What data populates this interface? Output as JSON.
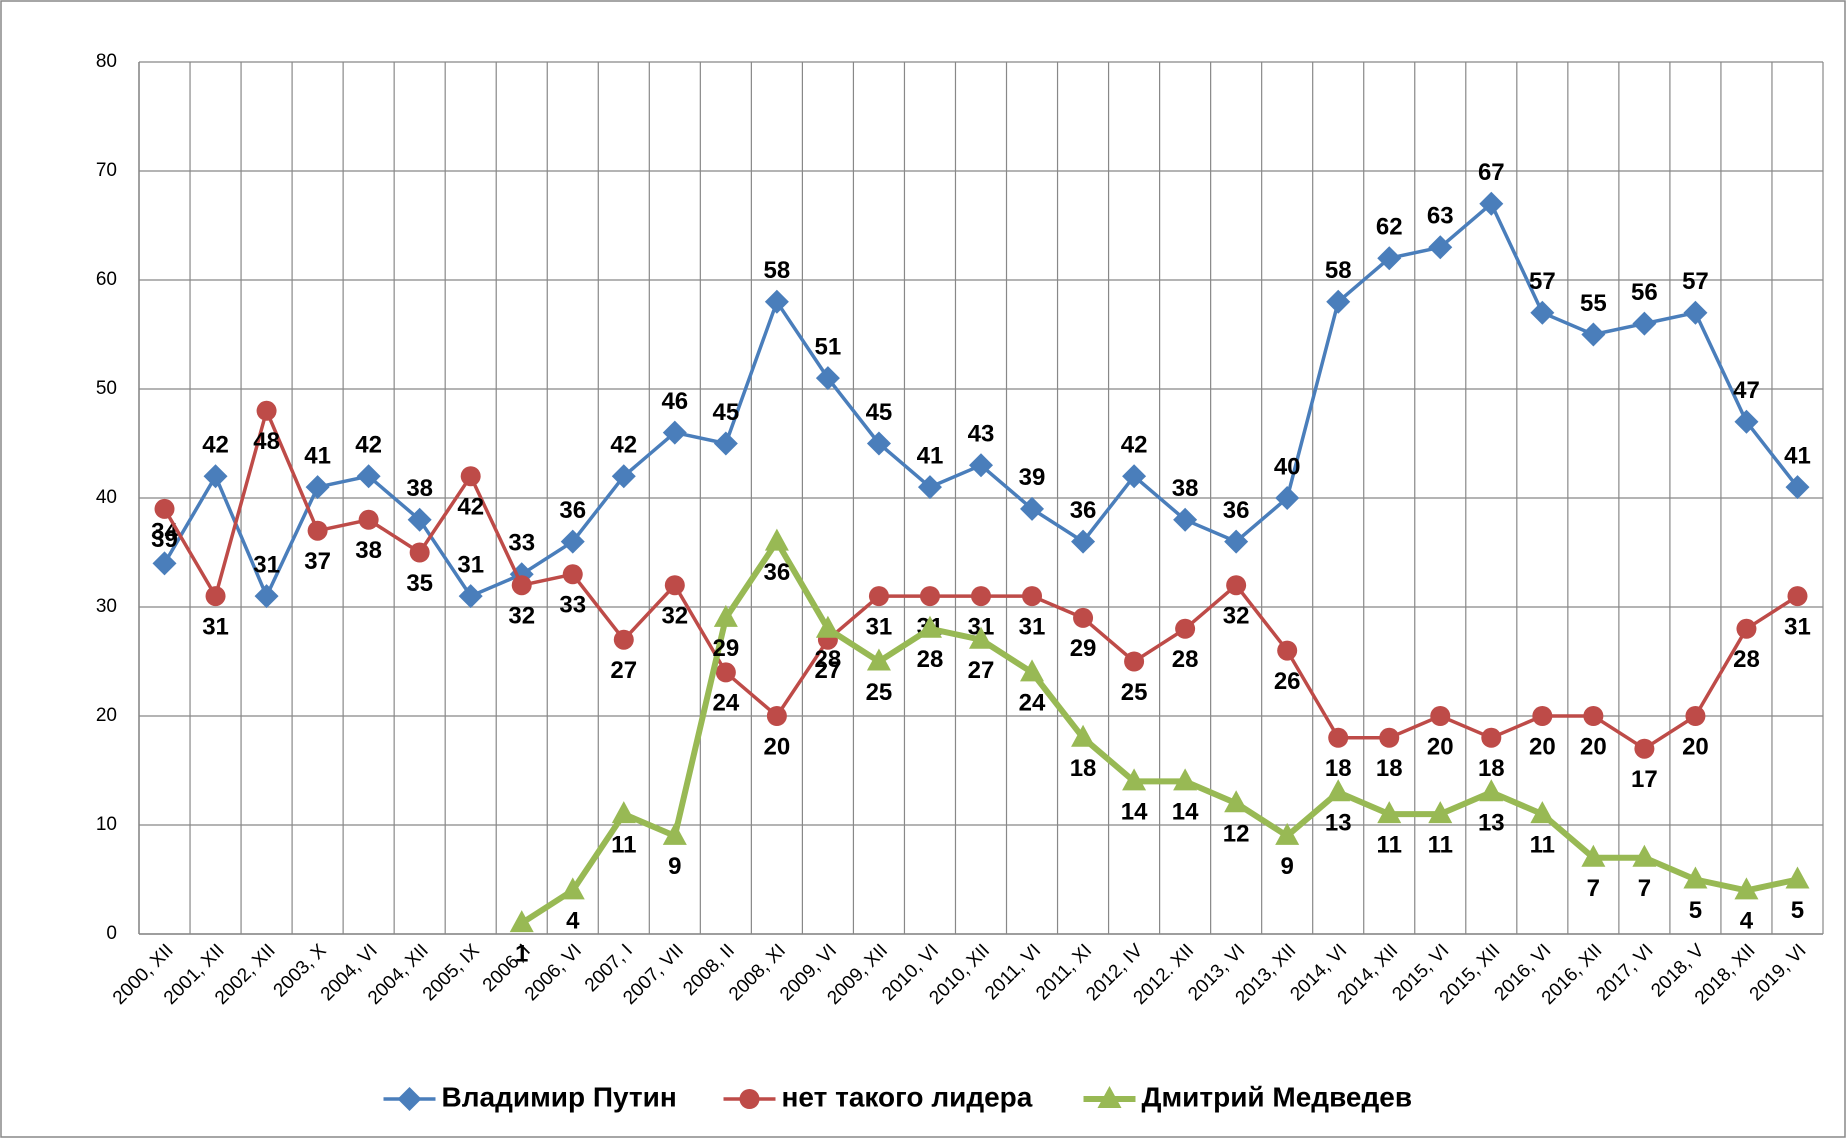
{
  "chart_data": {
    "type": "line",
    "categories": [
      "2000, XII",
      "2001, XII",
      "2002, XII",
      "2003, X",
      "2004, VI",
      "2004, XII",
      "2005, IX",
      "2006, I",
      "2006, VI",
      "2007, I",
      "2007, VII",
      "2008, II",
      "2008, XI",
      "2009, VI",
      "2009, XII",
      "2010, VI",
      "2010, XII",
      "2011, VI",
      "2011, XI",
      "2012, IV",
      "2012. XII",
      "2013, VI",
      "2013, XII",
      "2014, VI",
      "2014, XII",
      "2015, VI",
      "2015, XII",
      "2016, VI",
      "2016, XII",
      "2017, VI",
      "2018, V",
      "2018, XII",
      "2019, VI"
    ],
    "series": [
      {
        "name": "Владимир Путин",
        "color": "#4a7ebb",
        "marker": "diamond",
        "values": [
          34,
          42,
          31,
          41,
          42,
          38,
          31,
          33,
          36,
          42,
          46,
          45,
          58,
          51,
          45,
          41,
          43,
          39,
          36,
          42,
          38,
          36,
          40,
          58,
          62,
          63,
          67,
          57,
          55,
          56,
          57,
          47,
          41
        ]
      },
      {
        "name": "нет такого лидера",
        "color": "#be4b48",
        "marker": "circle",
        "values": [
          39,
          31,
          48,
          37,
          38,
          35,
          42,
          32,
          33,
          27,
          32,
          24,
          20,
          27,
          31,
          31,
          31,
          31,
          29,
          25,
          28,
          32,
          26,
          18,
          18,
          20,
          18,
          20,
          20,
          17,
          20,
          28,
          31
        ]
      },
      {
        "name": "Дмитрий Медведев",
        "color": "#98b954",
        "marker": "triangle",
        "values": [
          null,
          null,
          null,
          null,
          null,
          null,
          null,
          1,
          4,
          11,
          9,
          29,
          36,
          28,
          25,
          28,
          27,
          24,
          18,
          14,
          14,
          12,
          9,
          13,
          11,
          11,
          13,
          11,
          7,
          7,
          5,
          4,
          5
        ]
      }
    ],
    "ylim": [
      0,
      80
    ],
    "yticks": [
      0,
      10,
      20,
      30,
      40,
      50,
      60,
      70,
      80
    ],
    "grid": true,
    "legend": "bottom"
  }
}
